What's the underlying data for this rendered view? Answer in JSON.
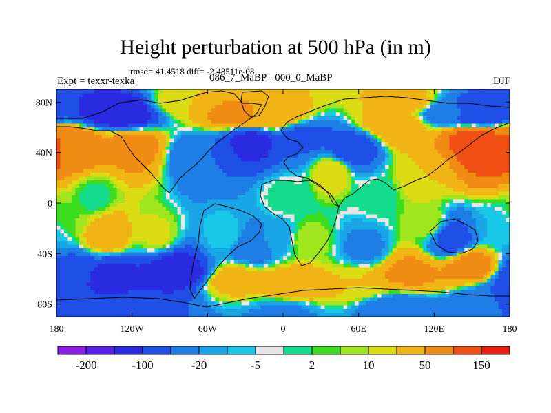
{
  "chart_data": {
    "type": "heatmap",
    "title": "Height perturbation at 500 hPa (in m)",
    "stats": "rmsd= 41.4518 diff= -2.48511e-08",
    "left_label": "Expt = texxr-texka",
    "center_label": "086_7_MaBP - 000_0_MaBP",
    "right_label": "DJF",
    "xlim": [
      -180,
      180
    ],
    "ylim": [
      -90,
      90
    ],
    "x_ticks": [
      {
        "value": -180,
        "label": "180"
      },
      {
        "value": -120,
        "label": "120W"
      },
      {
        "value": -60,
        "label": "60W"
      },
      {
        "value": 0,
        "label": "0"
      },
      {
        "value": 60,
        "label": "60E"
      },
      {
        "value": 120,
        "label": "120E"
      },
      {
        "value": 180,
        "label": "180"
      }
    ],
    "y_ticks": [
      {
        "value": 80,
        "label": "80N"
      },
      {
        "value": 40,
        "label": "40N"
      },
      {
        "value": 0,
        "label": "0"
      },
      {
        "value": -40,
        "label": "40S"
      },
      {
        "value": -80,
        "label": "80S"
      }
    ],
    "colorbar": {
      "levels": [
        -200,
        -150,
        -100,
        -50,
        -20,
        -10,
        -5,
        -2,
        2,
        5,
        10,
        20,
        50,
        100,
        150,
        200
      ],
      "colors": [
        "#8c1fe6",
        "#5a1fe6",
        "#2a2ae0",
        "#1f4fe6",
        "#1e7ee6",
        "#1aa6e6",
        "#19c8e6",
        "#e6e6e6",
        "#14dc8c",
        "#3cdc1e",
        "#a0e61e",
        "#dcdc14",
        "#f0b414",
        "#f08c14",
        "#f05014",
        "#e61e14"
      ],
      "labels": [
        {
          "value": -200,
          "label": "-200"
        },
        {
          "value": -100,
          "label": "-100"
        },
        {
          "value": -20,
          "label": "-20"
        },
        {
          "value": -5,
          "label": "-5"
        },
        {
          "value": 2,
          "label": "2"
        },
        {
          "value": 10,
          "label": "10"
        },
        {
          "value": 50,
          "label": "50"
        },
        {
          "value": 150,
          "label": "150"
        }
      ]
    },
    "anomalies": [
      {
        "lon": -120,
        "lat": 45,
        "value": 70
      },
      {
        "lon": -165,
        "lat": 45,
        "value": 90
      },
      {
        "lon": -130,
        "lat": 72,
        "value": -150
      },
      {
        "lon": -80,
        "lat": 80,
        "value": 20
      },
      {
        "lon": -40,
        "lat": 70,
        "value": 60
      },
      {
        "lon": -10,
        "lat": 68,
        "value": 45
      },
      {
        "lon": 15,
        "lat": 52,
        "value": -60
      },
      {
        "lon": -25,
        "lat": 48,
        "value": -120
      },
      {
        "lon": -65,
        "lat": 38,
        "value": -50
      },
      {
        "lon": 55,
        "lat": 42,
        "value": -80
      },
      {
        "lon": 90,
        "lat": 60,
        "value": 40
      },
      {
        "lon": 100,
        "lat": 80,
        "value": 30
      },
      {
        "lon": 130,
        "lat": 72,
        "value": -40
      },
      {
        "lon": 155,
        "lat": 72,
        "value": -100
      },
      {
        "lon": 165,
        "lat": 42,
        "value": 150
      },
      {
        "lon": 150,
        "lat": 50,
        "value": 120
      },
      {
        "lon": 110,
        "lat": 22,
        "value": 20
      },
      {
        "lon": 40,
        "lat": 25,
        "value": 20
      },
      {
        "lon": -150,
        "lat": 5,
        "value": 0
      },
      {
        "lon": -140,
        "lat": -25,
        "value": 40
      },
      {
        "lon": -170,
        "lat": -10,
        "value": 5
      },
      {
        "lon": -100,
        "lat": -25,
        "value": 12
      },
      {
        "lon": -45,
        "lat": -25,
        "value": -5
      },
      {
        "lon": -25,
        "lat": -33,
        "value": -40
      },
      {
        "lon": -5,
        "lat": -28,
        "value": -15
      },
      {
        "lon": 20,
        "lat": -30,
        "value": 8
      },
      {
        "lon": 65,
        "lat": -35,
        "value": -25
      },
      {
        "lon": 115,
        "lat": -15,
        "value": 10
      },
      {
        "lon": 135,
        "lat": -28,
        "value": -70
      },
      {
        "lon": 170,
        "lat": -20,
        "value": -10
      },
      {
        "lon": 150,
        "lat": -50,
        "value": 70
      },
      {
        "lon": 100,
        "lat": -55,
        "value": 60
      },
      {
        "lon": 55,
        "lat": -65,
        "value": 20
      },
      {
        "lon": 10,
        "lat": -65,
        "value": 45
      },
      {
        "lon": -40,
        "lat": -62,
        "value": 30
      },
      {
        "lon": -85,
        "lat": -55,
        "value": -150
      },
      {
        "lon": -135,
        "lat": -60,
        "value": -120
      },
      {
        "lon": -170,
        "lat": -58,
        "value": -90
      },
      {
        "lon": -120,
        "lat": -85,
        "value": -60
      },
      {
        "lon": 0,
        "lat": -88,
        "value": -25
      },
      {
        "lon": 90,
        "lat": -85,
        "value": -40
      },
      {
        "lon": 165,
        "lat": -82,
        "value": -50
      },
      {
        "lon": 0,
        "lat": 5,
        "value": 0
      },
      {
        "lon": 75,
        "lat": 5,
        "value": 0
      }
    ]
  }
}
